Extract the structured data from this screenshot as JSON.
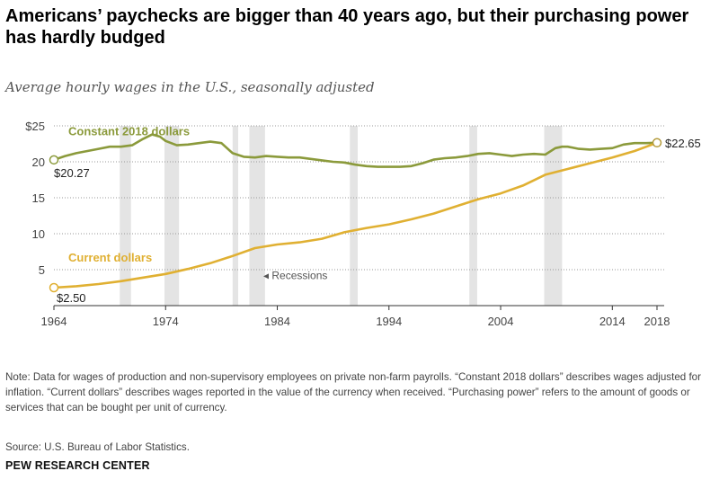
{
  "title": "Americans’ paychecks are bigger than 40 years ago, but their purchasing power has hardly budged",
  "subtitle": "Average hourly wages in the U.S., seasonally adjusted",
  "note": "Note: Data for wages of production and non-supervisory employees on private non-farm payrolls. “Constant 2018 dollars” describes wages adjusted for inflation. “Current dollars” describes wages reported in the value of the currency when received. “Purchasing power” refers to the amount of goods or services that can be bought per unit of currency.",
  "source": "Source: U.S. Bureau of Labor Statistics.",
  "brand": "PEW RESEARCH CENTER",
  "colors": {
    "constant": "#8b9a3b",
    "current": "#e0b032",
    "recession": "#e4e4e4",
    "grid": "#9a9a9a",
    "axis": "#333333"
  },
  "chart_data": {
    "type": "line",
    "x_range": [
      1964,
      2018
    ],
    "xticks": [
      1964,
      1974,
      1984,
      1994,
      2004,
      2014,
      2018
    ],
    "ylim": [
      0,
      25
    ],
    "yticks": [
      0,
      5,
      10,
      15,
      20,
      25
    ],
    "ytick_labels": [
      "",
      "5",
      "10",
      "15",
      "20",
      "$25"
    ],
    "grid": true,
    "recession_label": "Recessions",
    "recessions": [
      [
        1969.9,
        1970.9
      ],
      [
        1973.9,
        1975.2
      ],
      [
        1980.0,
        1980.5
      ],
      [
        1981.5,
        1982.9
      ],
      [
        1990.5,
        1991.2
      ],
      [
        2001.2,
        2001.9
      ],
      [
        2007.9,
        2009.5
      ]
    ],
    "series": [
      {
        "name": "Constant 2018 dollars",
        "start_label": "$20.27",
        "x": [
          1964,
          1965,
          1966,
          1967,
          1968,
          1969,
          1970,
          1971,
          1972,
          1972.8,
          1973.5,
          1974,
          1975,
          1976,
          1977,
          1978,
          1979,
          1980,
          1981,
          1982,
          1983,
          1984,
          1985,
          1986,
          1987,
          1988,
          1989,
          1990,
          1991,
          1992,
          1993,
          1994,
          1995,
          1996,
          1997,
          1998,
          1999,
          2000,
          2001,
          2002,
          2003,
          2004,
          2005,
          2006,
          2007,
          2008,
          2008.9,
          2009.5,
          2010,
          2011,
          2012,
          2013,
          2014,
          2015,
          2016,
          2017,
          2018
        ],
        "values": [
          20.27,
          20.8,
          21.2,
          21.5,
          21.8,
          22.1,
          22.1,
          22.3,
          23.2,
          23.8,
          23.5,
          22.9,
          22.3,
          22.4,
          22.6,
          22.8,
          22.6,
          21.2,
          20.7,
          20.6,
          20.8,
          20.7,
          20.6,
          20.6,
          20.4,
          20.2,
          20.0,
          19.9,
          19.6,
          19.4,
          19.3,
          19.3,
          19.3,
          19.4,
          19.8,
          20.3,
          20.5,
          20.6,
          20.8,
          21.1,
          21.2,
          21.0,
          20.8,
          21.0,
          21.1,
          21.0,
          21.9,
          22.1,
          22.1,
          21.8,
          21.7,
          21.8,
          21.9,
          22.4,
          22.6,
          22.6,
          22.65
        ]
      },
      {
        "name": "Current dollars",
        "start_label": "$2.50",
        "end_label": "$22.65",
        "x": [
          1964,
          1966,
          1968,
          1970,
          1972,
          1974,
          1976,
          1978,
          1980,
          1982,
          1984,
          1986,
          1988,
          1990,
          1992,
          1994,
          1996,
          1998,
          2000,
          2002,
          2004,
          2006,
          2008,
          2010,
          2012,
          2014,
          2016,
          2018
        ],
        "values": [
          2.5,
          2.7,
          3.0,
          3.4,
          3.9,
          4.4,
          5.1,
          5.9,
          6.9,
          8.0,
          8.5,
          8.8,
          9.3,
          10.2,
          10.8,
          11.3,
          12.0,
          12.8,
          13.8,
          14.8,
          15.6,
          16.7,
          18.2,
          19.0,
          19.8,
          20.6,
          21.5,
          22.65
        ]
      }
    ]
  }
}
